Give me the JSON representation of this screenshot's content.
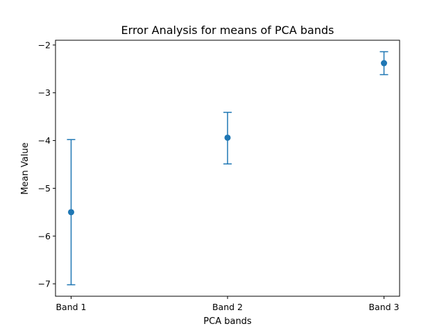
{
  "chart_data": {
    "type": "scatter",
    "title": "Error Analysis for means of PCA bands",
    "xlabel": "PCA bands",
    "ylabel": "Mean Value",
    "categories": [
      "Band 1",
      "Band 2",
      "Band 3"
    ],
    "series": [
      {
        "values": [
          -5.5,
          -3.94,
          -2.38
        ],
        "error_low": [
          -7.02,
          -4.49,
          -2.62
        ],
        "error_high": [
          -3.98,
          -3.41,
          -2.14
        ]
      }
    ],
    "yticks": [
      -7,
      -6,
      -5,
      -4,
      -3,
      -2
    ],
    "ytick_labels": [
      "−7",
      "−6",
      "−5",
      "−4",
      "−3",
      "−2"
    ],
    "ylim": [
      -7.26,
      -1.9
    ],
    "grid": false,
    "color": "#1f77b4"
  }
}
